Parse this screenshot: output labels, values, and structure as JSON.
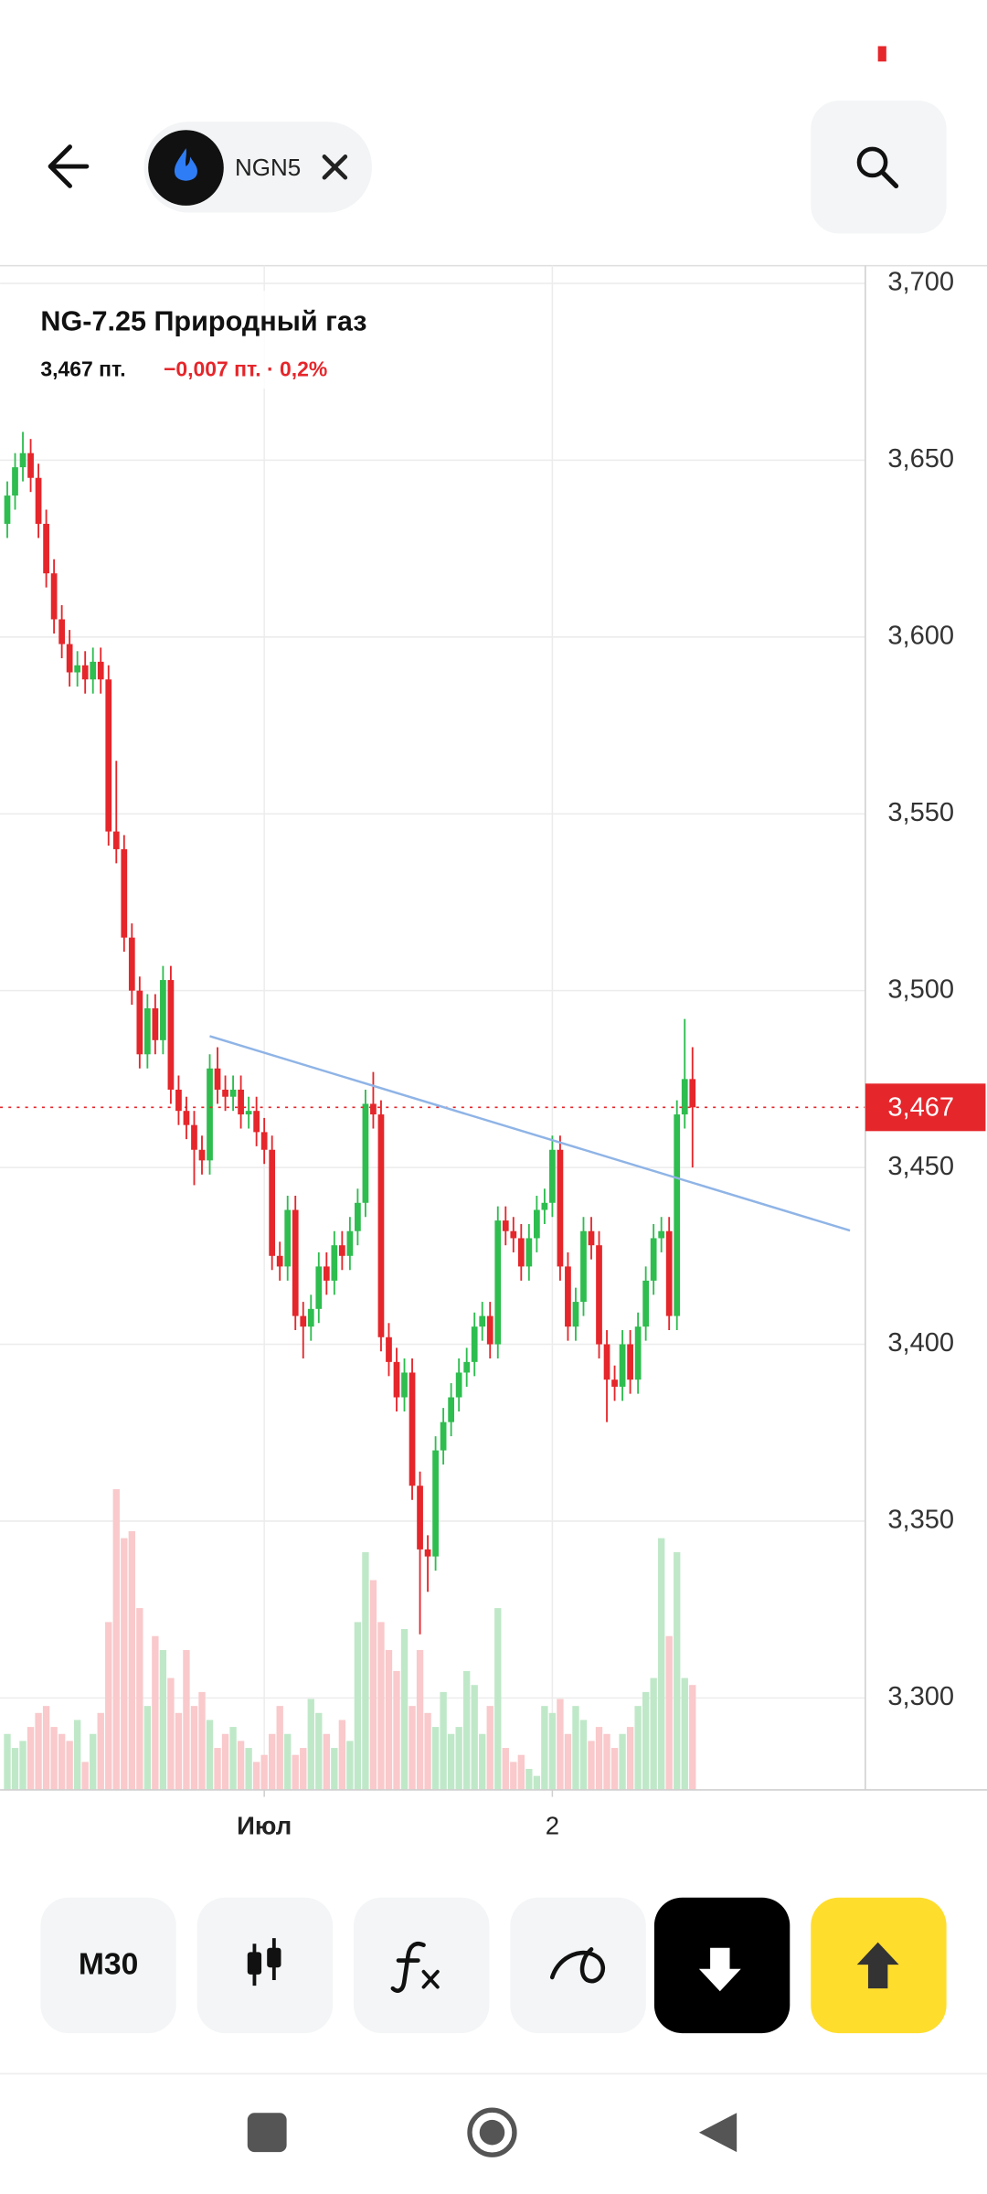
{
  "header": {
    "ticker": "NGN5"
  },
  "toolbar": {
    "interval": "M30"
  },
  "chart_data": {
    "type": "candlestick",
    "title": "NG-7.25 Природный газ",
    "price_text": "3,467 пт.",
    "change_text": "−0,007 пт. · 0,2%",
    "last_price": {
      "value": 3.467,
      "label": "3,467"
    },
    "colors": {
      "up": "#2ebd4f",
      "down": "#e5262b",
      "up_volume": "#bfe8c8",
      "down_volume": "#f9c9cb"
    },
    "grid": true,
    "ylim": [
      3.274,
      3.705
    ],
    "yticks": [
      {
        "value": 3.3,
        "label": "3,300"
      },
      {
        "value": 3.35,
        "label": "3,350"
      },
      {
        "value": 3.4,
        "label": "3,400"
      },
      {
        "value": 3.45,
        "label": "3,450"
      },
      {
        "value": 3.5,
        "label": "3,500"
      },
      {
        "value": 3.55,
        "label": "3,550"
      },
      {
        "value": 3.6,
        "label": "3,600"
      },
      {
        "value": 3.65,
        "label": "3,650"
      },
      {
        "value": 3.7,
        "label": "3,700"
      }
    ],
    "categories": [
      null,
      null,
      null,
      null,
      null,
      null,
      null,
      null,
      null,
      null,
      null,
      null,
      null,
      null,
      null,
      null,
      null,
      null,
      null,
      null,
      null,
      null,
      null,
      null,
      null,
      null,
      null,
      null,
      null,
      null,
      null,
      null,
      null,
      "Июл",
      null,
      null,
      null,
      null,
      null,
      null,
      null,
      null,
      null,
      null,
      null,
      null,
      null,
      null,
      null,
      null,
      null,
      null,
      null,
      null,
      null,
      null,
      null,
      null,
      null,
      null,
      null,
      null,
      null,
      null,
      null,
      null,
      null,
      null,
      null,
      null,
      "2",
      null,
      null,
      null,
      null,
      null,
      null,
      null,
      null,
      null,
      null,
      null,
      null,
      null,
      null,
      null,
      null,
      null,
      null
    ],
    "open": [
      3.632,
      3.64,
      3.648,
      3.652,
      3.645,
      3.632,
      3.618,
      3.605,
      3.598,
      3.59,
      3.592,
      3.588,
      3.593,
      3.588,
      3.545,
      3.54,
      3.515,
      3.5,
      3.482,
      3.495,
      3.486,
      3.503,
      3.472,
      3.466,
      3.462,
      3.455,
      3.452,
      3.478,
      3.472,
      3.47,
      3.472,
      3.465,
      3.466,
      3.46,
      3.455,
      3.425,
      3.422,
      3.438,
      3.408,
      3.405,
      3.41,
      3.422,
      3.418,
      3.428,
      3.425,
      3.432,
      3.44,
      3.468,
      3.465,
      3.402,
      3.395,
      3.385,
      3.392,
      3.36,
      3.342,
      3.34,
      3.37,
      3.378,
      3.385,
      3.392,
      3.395,
      3.405,
      3.408,
      3.4,
      3.435,
      3.432,
      3.43,
      3.422,
      3.43,
      3.438,
      3.44,
      3.455,
      3.422,
      3.405,
      3.412,
      3.432,
      3.428,
      3.4,
      3.39,
      3.388,
      3.4,
      3.39,
      3.405,
      3.418,
      3.43,
      3.432,
      3.408,
      3.465,
      3.475
    ],
    "high": [
      3.644,
      3.652,
      3.658,
      3.656,
      3.649,
      3.636,
      3.622,
      3.609,
      3.602,
      3.596,
      3.596,
      3.597,
      3.597,
      3.592,
      3.565,
      3.544,
      3.519,
      3.504,
      3.499,
      3.499,
      3.507,
      3.507,
      3.476,
      3.47,
      3.466,
      3.459,
      3.482,
      3.484,
      3.476,
      3.476,
      3.476,
      3.47,
      3.47,
      3.464,
      3.459,
      3.429,
      3.442,
      3.442,
      3.412,
      3.414,
      3.426,
      3.426,
      3.432,
      3.432,
      3.436,
      3.444,
      3.472,
      3.477,
      3.469,
      3.406,
      3.399,
      3.396,
      3.396,
      3.364,
      3.346,
      3.374,
      3.382,
      3.389,
      3.396,
      3.399,
      3.409,
      3.412,
      3.412,
      3.439,
      3.439,
      3.436,
      3.434,
      3.434,
      3.442,
      3.444,
      3.459,
      3.459,
      3.426,
      3.416,
      3.436,
      3.436,
      3.432,
      3.404,
      3.394,
      3.404,
      3.404,
      3.409,
      3.422,
      3.434,
      3.436,
      3.436,
      3.469,
      3.492,
      3.484
    ],
    "low": [
      3.628,
      3.636,
      3.644,
      3.641,
      3.628,
      3.614,
      3.601,
      3.594,
      3.586,
      3.586,
      3.584,
      3.584,
      3.584,
      3.541,
      3.536,
      3.511,
      3.496,
      3.478,
      3.478,
      3.482,
      3.482,
      3.468,
      3.462,
      3.458,
      3.445,
      3.448,
      3.448,
      3.468,
      3.466,
      3.466,
      3.461,
      3.461,
      3.456,
      3.451,
      3.421,
      3.418,
      3.418,
      3.404,
      3.396,
      3.401,
      3.406,
      3.414,
      3.414,
      3.421,
      3.421,
      3.428,
      3.436,
      3.461,
      3.398,
      3.391,
      3.381,
      3.381,
      3.356,
      3.318,
      3.33,
      3.336,
      3.366,
      3.374,
      3.381,
      3.388,
      3.391,
      3.401,
      3.396,
      3.396,
      3.428,
      3.426,
      3.418,
      3.418,
      3.426,
      3.434,
      3.436,
      3.418,
      3.401,
      3.401,
      3.408,
      3.424,
      3.396,
      3.378,
      3.384,
      3.384,
      3.386,
      3.386,
      3.401,
      3.414,
      3.426,
      3.404,
      3.404,
      3.461,
      3.45
    ],
    "close": [
      3.64,
      3.648,
      3.652,
      3.645,
      3.632,
      3.618,
      3.605,
      3.598,
      3.59,
      3.592,
      3.588,
      3.593,
      3.588,
      3.545,
      3.54,
      3.515,
      3.5,
      3.482,
      3.495,
      3.486,
      3.503,
      3.472,
      3.466,
      3.462,
      3.455,
      3.452,
      3.478,
      3.472,
      3.47,
      3.472,
      3.465,
      3.466,
      3.46,
      3.455,
      3.425,
      3.422,
      3.438,
      3.408,
      3.405,
      3.41,
      3.422,
      3.418,
      3.428,
      3.425,
      3.432,
      3.44,
      3.468,
      3.465,
      3.402,
      3.395,
      3.385,
      3.392,
      3.36,
      3.342,
      3.34,
      3.37,
      3.378,
      3.385,
      3.392,
      3.395,
      3.405,
      3.408,
      3.4,
      3.435,
      3.432,
      3.43,
      3.422,
      3.43,
      3.438,
      3.44,
      3.455,
      3.422,
      3.405,
      3.412,
      3.432,
      3.428,
      3.4,
      3.39,
      3.388,
      3.4,
      3.39,
      3.405,
      3.418,
      3.43,
      3.432,
      3.408,
      3.465,
      3.475,
      3.467
    ],
    "volume": [
      40,
      30,
      35,
      45,
      55,
      60,
      45,
      40,
      35,
      50,
      20,
      40,
      55,
      120,
      215,
      180,
      185,
      130,
      60,
      110,
      100,
      80,
      55,
      100,
      60,
      70,
      50,
      30,
      40,
      45,
      35,
      30,
      20,
      25,
      40,
      60,
      40,
      25,
      30,
      65,
      55,
      40,
      30,
      50,
      35,
      120,
      170,
      150,
      120,
      100,
      85,
      115,
      60,
      100,
      55,
      45,
      70,
      40,
      45,
      85,
      75,
      40,
      60,
      130,
      30,
      20,
      25,
      15,
      10,
      60,
      55,
      65,
      40,
      60,
      50,
      35,
      45,
      40,
      30,
      40,
      45,
      60,
      70,
      80,
      180,
      110,
      170,
      80,
      75
    ]
  }
}
